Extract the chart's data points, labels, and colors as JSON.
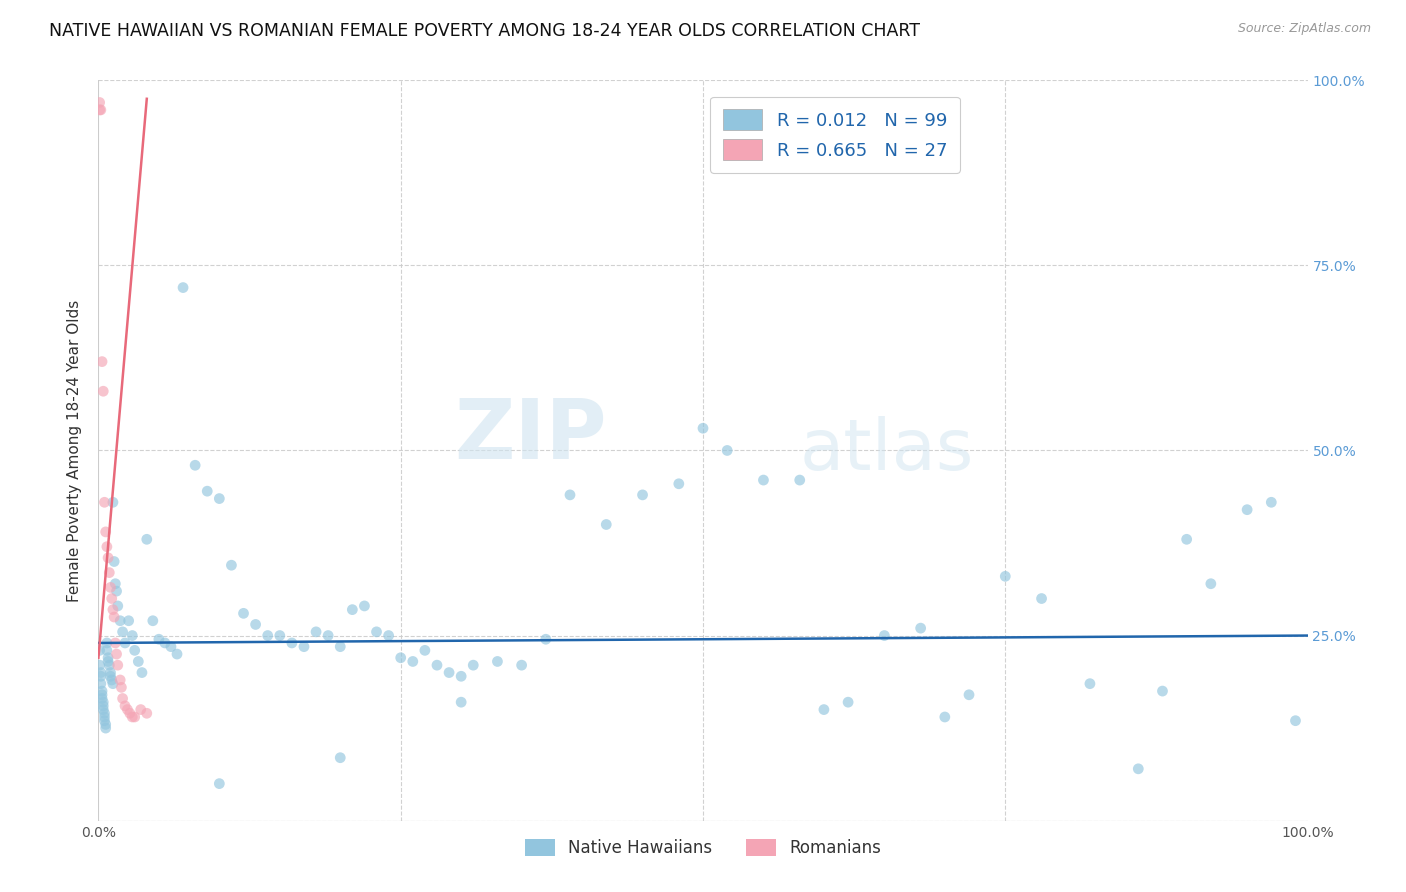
{
  "title": "NATIVE HAWAIIAN VS ROMANIAN FEMALE POVERTY AMONG 18-24 YEAR OLDS CORRELATION CHART",
  "source": "Source: ZipAtlas.com",
  "ylabel": "Female Poverty Among 18-24 Year Olds",
  "xlim": [
    0,
    1
  ],
  "ylim": [
    0,
    1
  ],
  "watermark_zip": "ZIP",
  "watermark_atlas": "atlas",
  "blue_color": "#92c5de",
  "pink_color": "#f4a5b5",
  "blue_line_color": "#2166ac",
  "pink_line_color": "#e8697a",
  "legend_r_blue": "0.012",
  "legend_n_blue": "99",
  "legend_r_pink": "0.665",
  "legend_n_pink": "27",
  "background_color": "#ffffff",
  "grid_color": "#cccccc",
  "title_fontsize": 12.5,
  "axis_label_fontsize": 11,
  "tick_fontsize": 10,
  "marker_size": 60,
  "marker_alpha": 0.65,
  "right_ytick_color": "#5b9bd5",
  "legend_text_color": "#2166ac",
  "blue_scatter_x": [
    0.001,
    0.001,
    0.002,
    0.002,
    0.002,
    0.003,
    0.003,
    0.003,
    0.004,
    0.004,
    0.004,
    0.005,
    0.005,
    0.005,
    0.006,
    0.006,
    0.007,
    0.007,
    0.008,
    0.008,
    0.009,
    0.01,
    0.01,
    0.011,
    0.012,
    0.012,
    0.013,
    0.014,
    0.015,
    0.016,
    0.018,
    0.02,
    0.022,
    0.025,
    0.028,
    0.03,
    0.033,
    0.036,
    0.04,
    0.045,
    0.05,
    0.055,
    0.06,
    0.065,
    0.07,
    0.08,
    0.09,
    0.1,
    0.11,
    0.12,
    0.13,
    0.14,
    0.15,
    0.16,
    0.17,
    0.18,
    0.19,
    0.2,
    0.21,
    0.22,
    0.23,
    0.24,
    0.25,
    0.26,
    0.27,
    0.28,
    0.29,
    0.3,
    0.31,
    0.33,
    0.35,
    0.37,
    0.39,
    0.42,
    0.45,
    0.48,
    0.5,
    0.52,
    0.55,
    0.58,
    0.6,
    0.62,
    0.65,
    0.68,
    0.7,
    0.72,
    0.75,
    0.78,
    0.82,
    0.86,
    0.88,
    0.9,
    0.92,
    0.95,
    0.97,
    0.99,
    0.1,
    0.2,
    0.3
  ],
  "blue_scatter_y": [
    0.23,
    0.21,
    0.2,
    0.195,
    0.185,
    0.175,
    0.17,
    0.165,
    0.16,
    0.155,
    0.15,
    0.145,
    0.14,
    0.135,
    0.13,
    0.125,
    0.24,
    0.23,
    0.22,
    0.215,
    0.21,
    0.2,
    0.195,
    0.19,
    0.185,
    0.43,
    0.35,
    0.32,
    0.31,
    0.29,
    0.27,
    0.255,
    0.24,
    0.27,
    0.25,
    0.23,
    0.215,
    0.2,
    0.38,
    0.27,
    0.245,
    0.24,
    0.235,
    0.225,
    0.72,
    0.48,
    0.445,
    0.435,
    0.345,
    0.28,
    0.265,
    0.25,
    0.25,
    0.24,
    0.235,
    0.255,
    0.25,
    0.235,
    0.285,
    0.29,
    0.255,
    0.25,
    0.22,
    0.215,
    0.23,
    0.21,
    0.2,
    0.195,
    0.21,
    0.215,
    0.21,
    0.245,
    0.44,
    0.4,
    0.44,
    0.455,
    0.53,
    0.5,
    0.46,
    0.46,
    0.15,
    0.16,
    0.25,
    0.26,
    0.14,
    0.17,
    0.33,
    0.3,
    0.185,
    0.07,
    0.175,
    0.38,
    0.32,
    0.42,
    0.43,
    0.135,
    0.05,
    0.085,
    0.16
  ],
  "pink_scatter_x": [
    0.001,
    0.001,
    0.002,
    0.003,
    0.004,
    0.005,
    0.006,
    0.007,
    0.008,
    0.009,
    0.01,
    0.011,
    0.012,
    0.013,
    0.014,
    0.015,
    0.016,
    0.018,
    0.019,
    0.02,
    0.022,
    0.024,
    0.026,
    0.028,
    0.03,
    0.035,
    0.04
  ],
  "pink_scatter_y": [
    0.97,
    0.96,
    0.96,
    0.62,
    0.58,
    0.43,
    0.39,
    0.37,
    0.355,
    0.335,
    0.315,
    0.3,
    0.285,
    0.275,
    0.24,
    0.225,
    0.21,
    0.19,
    0.18,
    0.165,
    0.155,
    0.15,
    0.145,
    0.14,
    0.14,
    0.15,
    0.145
  ],
  "pink_line_x": [
    0.0,
    0.04
  ],
  "pink_line_y": [
    0.22,
    0.975
  ],
  "blue_line_x": [
    0.0,
    1.0
  ],
  "blue_line_y": [
    0.24,
    0.25
  ]
}
